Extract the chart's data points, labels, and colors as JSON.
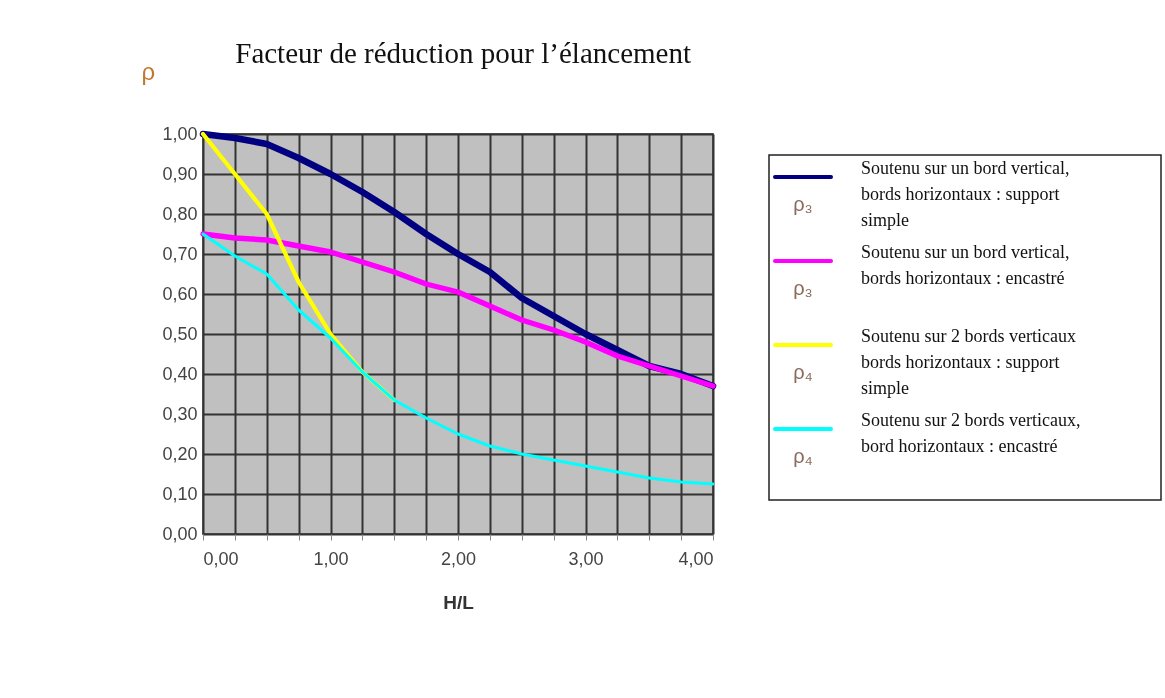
{
  "chart_data": {
    "type": "line",
    "title": "Facteur de réduction pour l’élancement",
    "xlabel": "H/L",
    "ylabel": "ρ",
    "x": [
      0,
      0.25,
      0.5,
      0.75,
      1,
      1.25,
      1.5,
      1.75,
      2,
      2.25,
      2.5,
      2.75,
      3,
      3.25,
      3.5,
      3.75,
      4
    ],
    "series": [
      {
        "name": "Soutenu sur un bord vertical, bords horizontaux : support simple",
        "color": "#000080",
        "values": [
          1.0,
          0.99,
          0.975,
          0.94,
          0.9,
          0.855,
          0.805,
          0.75,
          0.7,
          0.655,
          0.59,
          0.545,
          0.5,
          0.46,
          0.42,
          0.4,
          0.37
        ]
      },
      {
        "name": "Soutenu sur un bord vertical, bords horizontaux : encastré",
        "color": "#ff00ff",
        "values": [
          0.75,
          0.74,
          0.735,
          0.72,
          0.705,
          0.68,
          0.655,
          0.625,
          0.605,
          0.57,
          0.535,
          0.51,
          0.48,
          0.445,
          0.42,
          0.395,
          0.37
        ]
      },
      {
        "name": "Soutenu sur 2 bords verticaux bords horizontaux : support simple",
        "color": "#ffff00",
        "x": [
          0,
          0.25,
          0.5,
          0.75,
          1,
          1.25,
          1.5
        ],
        "values": [
          1.0,
          0.9,
          0.8,
          0.63,
          0.5,
          0.405,
          0.335
        ]
      },
      {
        "name": "Soutenu sur 2 bords verticaux, bord horizontaux : encastré",
        "color": "#00ffff",
        "values": [
          0.75,
          0.695,
          0.65,
          0.56,
          0.49,
          0.405,
          0.335,
          0.29,
          0.25,
          0.22,
          0.2,
          0.185,
          0.17,
          0.155,
          0.14,
          0.13,
          0.125
        ]
      }
    ],
    "annotations": [
      "ρ₃",
      "ρ₃",
      "ρ₄",
      "ρ₄"
    ],
    "xlim": [
      0,
      4
    ],
    "ylim": [
      0,
      1
    ],
    "xticks": [
      {
        "value": 0,
        "label": "0,00"
      },
      {
        "value": 0.25,
        "label": null
      },
      {
        "value": 0.5,
        "label": null
      },
      {
        "value": 0.75,
        "label": null
      },
      {
        "value": 1,
        "label": "1,00"
      },
      {
        "value": 1.25,
        "label": null
      },
      {
        "value": 1.5,
        "label": null
      },
      {
        "value": 1.75,
        "label": null
      },
      {
        "value": 2,
        "label": "2,00"
      },
      {
        "value": 2.25,
        "label": null
      },
      {
        "value": 2.5,
        "label": null
      },
      {
        "value": 2.75,
        "label": null
      },
      {
        "value": 3,
        "label": "3,00"
      },
      {
        "value": 3.25,
        "label": null
      },
      {
        "value": 3.5,
        "label": null
      },
      {
        "value": 3.75,
        "label": null
      },
      {
        "value": 4,
        "label": "4,00"
      }
    ],
    "yticks": [
      {
        "value": 0,
        "label": "0,00"
      },
      {
        "value": 0.1,
        "label": "0,10"
      },
      {
        "value": 0.2,
        "label": "0,20"
      },
      {
        "value": 0.3,
        "label": "0,30"
      },
      {
        "value": 0.4,
        "label": "0,40"
      },
      {
        "value": 0.5,
        "label": "0,50"
      },
      {
        "value": 0.6,
        "label": "0,60"
      },
      {
        "value": 0.7,
        "label": "0,70"
      },
      {
        "value": 0.8,
        "label": "0,80"
      },
      {
        "value": 0.9,
        "label": "0,90"
      },
      {
        "value": 1,
        "label": "1,00"
      }
    ],
    "grid": true,
    "legend": "right",
    "line_style": "solid",
    "marker": "none"
  }
}
